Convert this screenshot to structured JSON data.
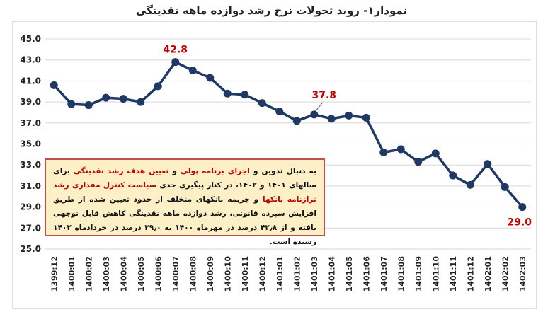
{
  "chart_data": {
    "type": "line",
    "title": "نمودار۱- روند تحولات نرخ رشد دوازده ماهه نقدینگی",
    "categories": [
      "1399:12",
      "1400:01",
      "1400:02",
      "1400:03",
      "1400:04",
      "1400:05",
      "1400:06",
      "1400:07",
      "1400:08",
      "1400:09",
      "1400:10",
      "1400:11",
      "1400:12",
      "1401:01",
      "1401:02",
      "1401:03",
      "1401:04",
      "1401:05",
      "1401:06",
      "1401:07",
      "1401:08",
      "1401:09",
      "1401:10",
      "1401:11",
      "1401:12",
      "1402:01",
      "1402:02",
      "1402:03"
    ],
    "series": [
      {
        "values": [
          40.6,
          38.8,
          38.7,
          39.4,
          39.3,
          39.0,
          40.5,
          42.8,
          42.0,
          41.3,
          39.8,
          39.7,
          38.9,
          38.1,
          37.2,
          37.8,
          37.4,
          37.7,
          37.5,
          34.2,
          34.5,
          33.3,
          34.1,
          32.0,
          31.1,
          33.1,
          30.9,
          29.0
        ]
      }
    ],
    "ylim": [
      25.0,
      45.0
    ],
    "yticks": [
      "25.0",
      "27.0",
      "29.0",
      "31.0",
      "33.0",
      "35.0",
      "37.0",
      "39.0",
      "41.0",
      "43.0",
      "45.0"
    ],
    "grid": "horizontal",
    "annotations": [
      {
        "category": "1400:07",
        "label": "42.8"
      },
      {
        "category": "1401:03",
        "label": "37.8"
      },
      {
        "category": "1402:03",
        "label": "29.0"
      }
    ],
    "colors": {
      "line": "#1f3864",
      "annotation": "#c00000",
      "grid": "#d9d9d9",
      "box_fill": "#fdf0c7",
      "box_border": "#c0504d"
    }
  },
  "note": {
    "segments": [
      {
        "text": "به دنبال تدوین و ",
        "highlight": false
      },
      {
        "text": "اجرای برنامه پولی",
        "highlight": true
      },
      {
        "text": " و ",
        "highlight": false
      },
      {
        "text": "تعیین هدف رشد نقدینگی",
        "highlight": true
      },
      {
        "text": " برای سالهای ۱۴۰۱ و ۱۴۰۲، در کنار پیگیری جدی ",
        "highlight": false
      },
      {
        "text": "سیاست کنترل مقداری رشد ترازنامه بانکها",
        "highlight": true
      },
      {
        "text": " و جریمه بانکهای متخلف از حدود تعیین شده از طریق افزایش سپرده قانونی، رشد دوازده ماهه نقدینگی کاهش قابل توجهی یافته و از ۴۲٫۸ درصد در مهرماه ۱۴۰۰ به ۲۹٫۰ درصد در خردادماه ۱۴۰۲ رسیده است.",
        "highlight": false
      }
    ]
  }
}
